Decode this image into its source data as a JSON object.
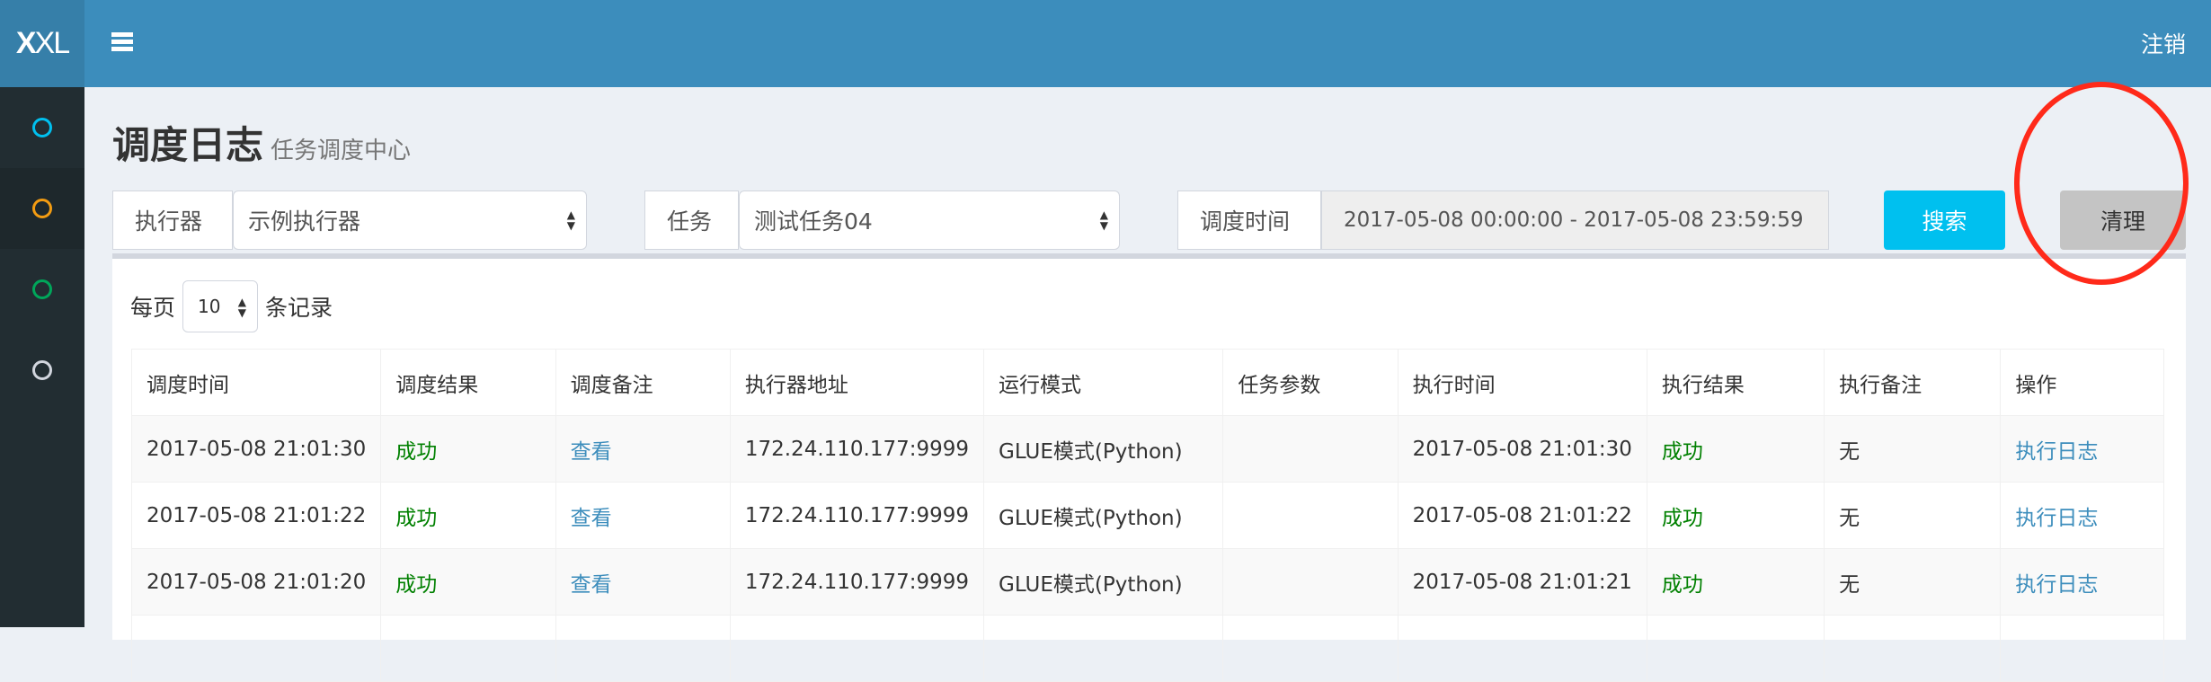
{
  "app": {
    "logo": "XXL",
    "logout": "注销"
  },
  "sidebar": {
    "items": [
      {
        "icon": "circle-icon",
        "color": "#00c0ef"
      },
      {
        "icon": "circle-icon",
        "color": "#f39c12"
      },
      {
        "icon": "circle-icon",
        "color": "#00a65a"
      },
      {
        "icon": "circle-icon",
        "color": "#d2d6de"
      }
    ]
  },
  "page": {
    "title": "调度日志",
    "subtitle": "任务调度中心"
  },
  "filters": {
    "executor_label": "执行器",
    "executor_value": "示例执行器",
    "task_label": "任务",
    "task_value": "测试任务04",
    "time_label": "调度时间",
    "time_value": "2017-05-08 00:00:00 - 2017-05-08 23:59:59",
    "search": "搜索",
    "clean": "清理"
  },
  "colors": {
    "header": "#3c8dbc",
    "search": "#00c0ef",
    "success": "#008000",
    "link": "#3c8dbc",
    "annotation": "#ff2a1a"
  },
  "pager": {
    "prefix": "每页",
    "value": "10",
    "suffix": "条记录"
  },
  "table": {
    "columns": [
      "调度时间",
      "调度结果",
      "调度备注",
      "执行器地址",
      "运行模式",
      "任务参数",
      "执行时间",
      "执行结果",
      "执行备注",
      "操作"
    ],
    "rows": [
      [
        "2017-05-08 21:01:30",
        "成功",
        "查看",
        "172.24.110.177:9999",
        "GLUE模式(Python)",
        "",
        "2017-05-08 21:01:30",
        "成功",
        "无",
        "执行日志"
      ],
      [
        "2017-05-08 21:01:22",
        "成功",
        "查看",
        "172.24.110.177:9999",
        "GLUE模式(Python)",
        "",
        "2017-05-08 21:01:22",
        "成功",
        "无",
        "执行日志"
      ],
      [
        "2017-05-08 21:01:20",
        "成功",
        "查看",
        "172.24.110.177:9999",
        "GLUE模式(Python)",
        "",
        "2017-05-08 21:01:21",
        "成功",
        "无",
        "执行日志"
      ],
      [
        "",
        "",
        "",
        "",
        "",
        "",
        "",
        "",
        "",
        ""
      ]
    ]
  }
}
